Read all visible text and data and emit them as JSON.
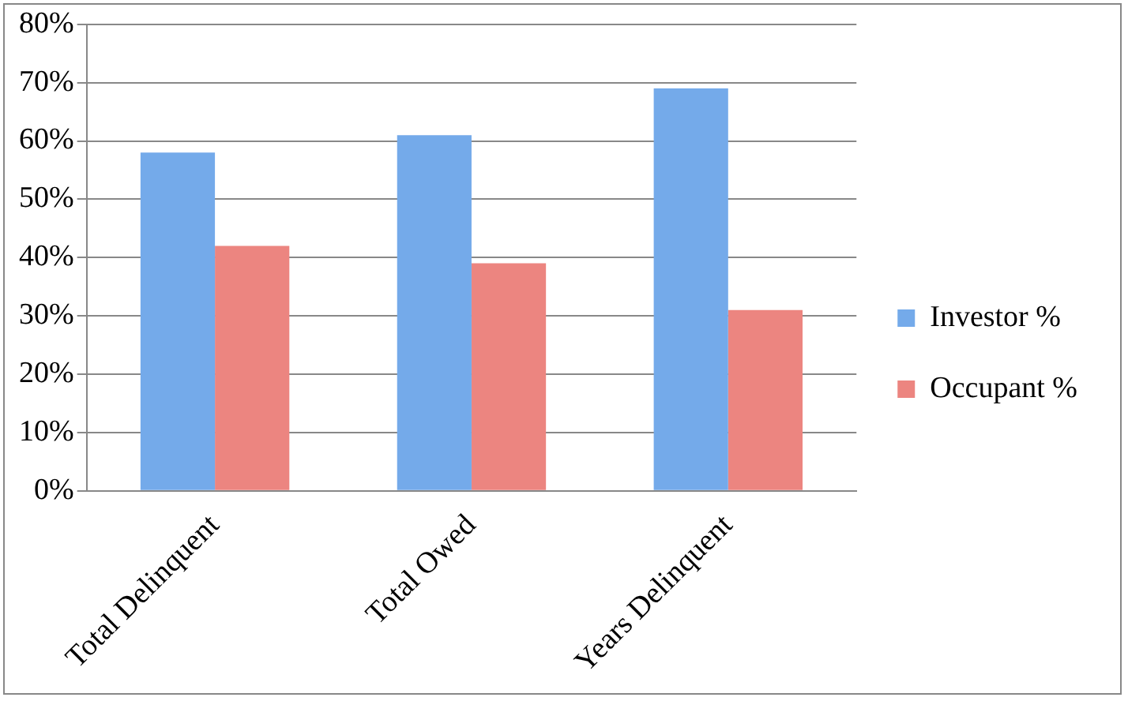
{
  "chart_data": {
    "type": "bar",
    "categories": [
      "Total Delinquent",
      "Total Owed",
      "Years Delinquent"
    ],
    "series": [
      {
        "name": "Investor %",
        "color": "#74aaea",
        "values": [
          58,
          61,
          69
        ]
      },
      {
        "name": "Occupant %",
        "color": "#ec8580",
        "values": [
          42,
          39,
          31
        ]
      }
    ],
    "ylim": [
      0,
      80
    ],
    "yticks": [
      {
        "value": 0,
        "label": "0%"
      },
      {
        "value": 10,
        "label": "10%"
      },
      {
        "value": 20,
        "label": "20%"
      },
      {
        "value": 30,
        "label": "30%"
      },
      {
        "value": 40,
        "label": "40%"
      },
      {
        "value": 50,
        "label": "50%"
      },
      {
        "value": 60,
        "label": "60%"
      },
      {
        "value": 70,
        "label": "70%"
      },
      {
        "value": 80,
        "label": "80%"
      }
    ],
    "grid": "y",
    "legend": "right"
  }
}
